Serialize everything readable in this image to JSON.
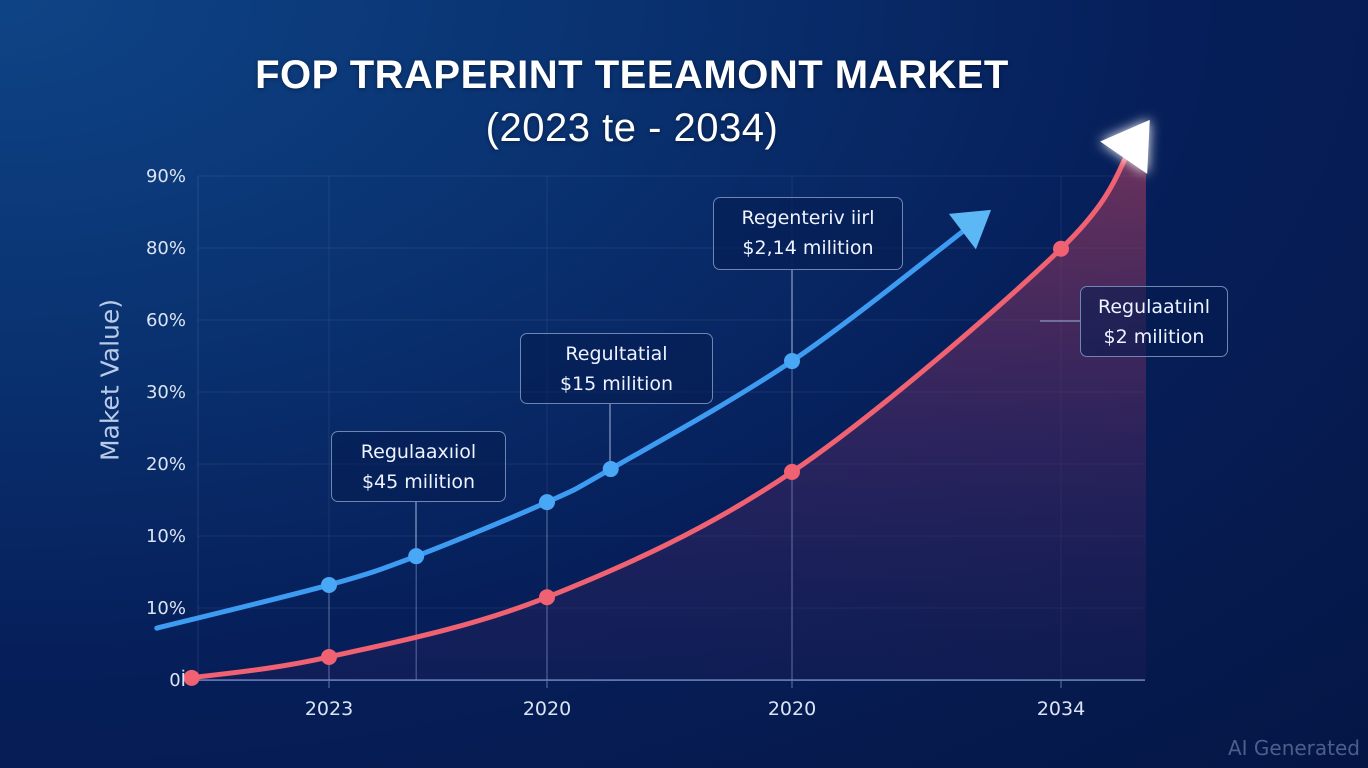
{
  "chart_data": {
    "type": "line",
    "title": "FOP TRAPERINT TEEAMONT MARKET",
    "subtitle": "(2023 te - 2034)",
    "xlabel": "",
    "ylabel": "Maket Value)",
    "x_ticks": [
      "2023",
      "2020",
      "2020",
      "2034"
    ],
    "y_ticks": [
      "0",
      "10%",
      "10%",
      "20%",
      "30%",
      "60%",
      "80%",
      "90%"
    ],
    "y_tick_origin_label": "0İ",
    "x_unit_note": "x values are positions along the tick sequence (0 = first tick label, 3 = last)",
    "y_unit_note": "y values are positions along the tick sequence (0 = bottom tick, 7 = top tick)",
    "xlim": [
      -0.85,
      3.3
    ],
    "ylim": [
      0,
      7
    ],
    "grid": true,
    "legend": "none",
    "series": [
      {
        "name": "blue",
        "color": "#3d9bf2",
        "line_start": {
          "x": -0.79,
          "y": 0.72
        },
        "points": [
          {
            "x": 0.0,
            "y": 1.32
          },
          {
            "x": 0.4,
            "y": 1.72
          },
          {
            "x": 1.0,
            "y": 2.47
          },
          {
            "x": 1.26,
            "y": 2.93
          },
          {
            "x": 2.0,
            "y": 4.43
          }
        ],
        "arrow_end": {
          "x": 2.74,
          "y": 6.53
        },
        "arrow_color": "#5bb8f5"
      },
      {
        "name": "red",
        "color": "#f06272",
        "points": [
          {
            "x": -0.63,
            "y": 0.03
          },
          {
            "x": 0.0,
            "y": 0.32
          },
          {
            "x": 1.0,
            "y": 1.15
          },
          {
            "x": 2.0,
            "y": 2.89
          },
          {
            "x": 3.0,
            "y": 5.99
          }
        ],
        "arrow_end": {
          "x": 3.33,
          "y": 7.78
        },
        "arrow_color": "#ffffff",
        "area_fill": true
      }
    ],
    "annotations": [
      {
        "line1": "Regulaaxıiol",
        "line2": "$45 milition",
        "anchor_series": "blue",
        "anchor_point": 1
      },
      {
        "line1": "Regultatial",
        "line2": "$15 milition",
        "anchor_series": "blue",
        "anchor_point": 3
      },
      {
        "line1": "Regenteriv iirl",
        "line2": "$2,14 milition",
        "anchor_series": "blue",
        "anchor_point": 4
      },
      {
        "line1": "Regulaatıinl",
        "line2": "$2 milition",
        "anchor_series": "red",
        "anchor_point": 4
      }
    ]
  },
  "watermark": "AI Generated"
}
